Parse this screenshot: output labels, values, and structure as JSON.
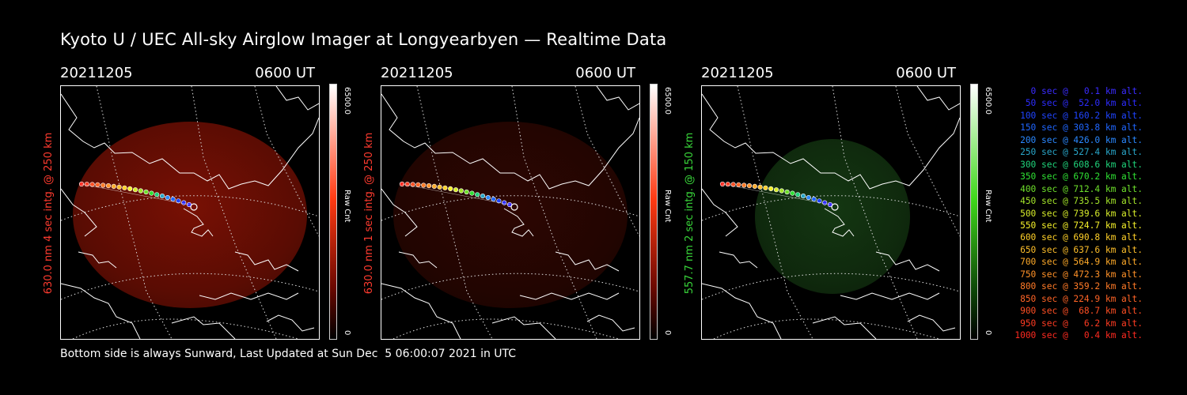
{
  "title": "Kyoto U / UEC All-sky Airglow Imager at Longyearbyen — Realtime Data",
  "panels": [
    {
      "date": "20211205",
      "time": "0600 UT",
      "ylabel": "630.0 nm 4 sec intg. @ 250 km",
      "label_color": "#ff3b2f",
      "cbar_max": "6500.0",
      "cbar_label": "Raw Cnt",
      "cbar_min": "0",
      "colormap": "red",
      "brightness": 0.8
    },
    {
      "date": "20211205",
      "time": "0600 UT",
      "ylabel": "630.0 nm 1 sec intg. @ 250 km",
      "label_color": "#ff3b2f",
      "cbar_max": "6500.0",
      "cbar_label": "Raw Cnt",
      "cbar_min": "0",
      "colormap": "red",
      "brightness": 0.3
    },
    {
      "date": "20211205",
      "time": "0600 UT",
      "ylabel": "557.7 nm 2 sec intg. @ 150 km",
      "label_color": "#39d63a",
      "cbar_max": "6500.0",
      "cbar_label": "Raw Cnt",
      "cbar_min": "0",
      "colormap": "green",
      "brightness": 0.5
    }
  ],
  "legend": [
    {
      "text": "0 sec @   0.1 km alt.",
      "color": "#3a2bff"
    },
    {
      "text": "50 sec @  52.0 km alt.",
      "color": "#2d2cff"
    },
    {
      "text": "100 sec @ 160.2 km alt.",
      "color": "#1f44ff"
    },
    {
      "text": "150 sec @ 303.8 km alt.",
      "color": "#1f66ff"
    },
    {
      "text": "200 sec @ 426.0 km alt.",
      "color": "#2a88ff"
    },
    {
      "text": "250 sec @ 527.4 km alt.",
      "color": "#29a6c9"
    },
    {
      "text": "300 sec @ 608.6 km alt.",
      "color": "#1fd37a"
    },
    {
      "text": "350 sec @ 670.2 km alt.",
      "color": "#2fe033"
    },
    {
      "text": "400 sec @ 712.4 km alt.",
      "color": "#6ee02b"
    },
    {
      "text": "450 sec @ 735.5 km alt.",
      "color": "#a4e52a"
    },
    {
      "text": "500 sec @ 739.6 km alt.",
      "color": "#d7ec2a"
    },
    {
      "text": "550 sec @ 724.7 km alt.",
      "color": "#f4f02a"
    },
    {
      "text": "600 sec @ 690.8 km alt.",
      "color": "#ffd028"
    },
    {
      "text": "650 sec @ 637.6 km alt.",
      "color": "#ffbf2a"
    },
    {
      "text": "700 sec @ 564.9 km alt.",
      "color": "#ffaa29"
    },
    {
      "text": "750 sec @ 472.3 km alt.",
      "color": "#ff9128"
    },
    {
      "text": "800 sec @ 359.2 km alt.",
      "color": "#ff7a27"
    },
    {
      "text": "850 sec @ 224.9 km alt.",
      "color": "#ff6426"
    },
    {
      "text": "900 sec @  68.7 km alt.",
      "color": "#ff4f24"
    },
    {
      "text": "950 sec @   6.2 km alt.",
      "color": "#ff3b22"
    },
    {
      "text": "1000 sec @   0.4 km alt.",
      "color": "#ff2a20"
    }
  ],
  "footer": "Bottom side is always Sunward, Last Updated at Sun Dec  5 06:00:07 2021 in UTC"
}
